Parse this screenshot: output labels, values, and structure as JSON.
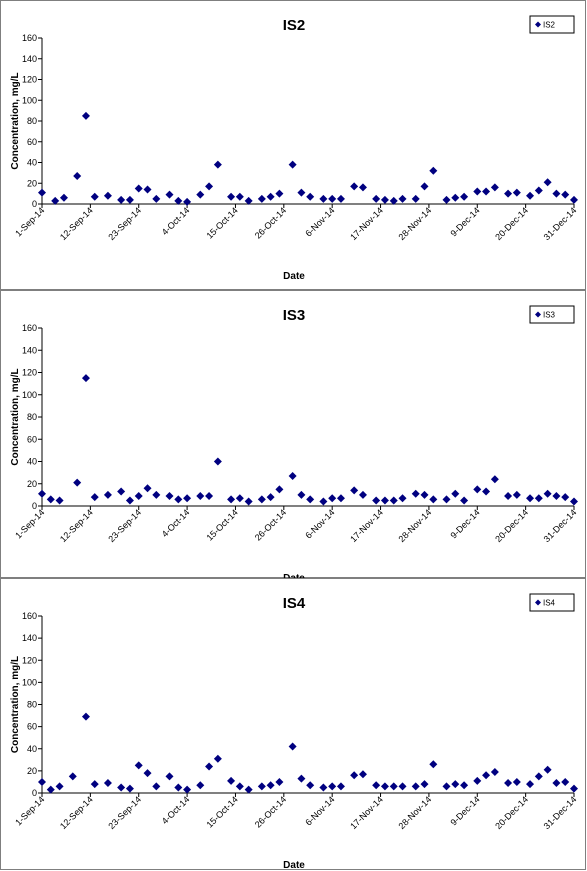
{
  "colors": {
    "marker": "#000080",
    "axis": "#000000",
    "frame": "#7f7f7f"
  },
  "chart_data": [
    {
      "type": "scatter",
      "title": "IS2",
      "xlabel": "Date",
      "ylabel": "Concentration, mg/L",
      "legend": "IS2",
      "legend_position": "top-right",
      "grid": false,
      "ylim": [
        0,
        160
      ],
      "y_ticks": [
        0,
        20,
        40,
        60,
        80,
        100,
        120,
        140,
        160
      ],
      "xlim": [
        "2014-09-01",
        "2014-12-31"
      ],
      "x_ticks": [
        "1-Sep-14",
        "12-Sep-14",
        "23-Sep-14",
        "4-Oct-14",
        "15-Oct-14",
        "26-Oct-14",
        "6-Nov-14",
        "17-Nov-14",
        "28-Nov-14",
        "9-Dec-14",
        "20-Dec-14",
        "31-Dec-14"
      ],
      "points": [
        [
          "2014-09-01",
          11
        ],
        [
          "2014-09-04",
          3
        ],
        [
          "2014-09-06",
          6
        ],
        [
          "2014-09-09",
          27
        ],
        [
          "2014-09-11",
          85
        ],
        [
          "2014-09-13",
          7
        ],
        [
          "2014-09-16",
          8
        ],
        [
          "2014-09-19",
          4
        ],
        [
          "2014-09-21",
          4
        ],
        [
          "2014-09-23",
          15
        ],
        [
          "2014-09-25",
          14
        ],
        [
          "2014-09-27",
          5
        ],
        [
          "2014-09-30",
          9
        ],
        [
          "2014-10-02",
          3
        ],
        [
          "2014-10-04",
          2
        ],
        [
          "2014-10-07",
          9
        ],
        [
          "2014-10-09",
          17
        ],
        [
          "2014-10-11",
          38
        ],
        [
          "2014-10-14",
          7
        ],
        [
          "2014-10-16",
          7
        ],
        [
          "2014-10-18",
          3
        ],
        [
          "2014-10-21",
          5
        ],
        [
          "2014-10-23",
          7
        ],
        [
          "2014-10-25",
          10
        ],
        [
          "2014-10-28",
          38
        ],
        [
          "2014-10-30",
          11
        ],
        [
          "2014-11-01",
          7
        ],
        [
          "2014-11-04",
          5
        ],
        [
          "2014-11-06",
          5
        ],
        [
          "2014-11-08",
          5
        ],
        [
          "2014-11-11",
          17
        ],
        [
          "2014-11-13",
          16
        ],
        [
          "2014-11-16",
          5
        ],
        [
          "2014-11-18",
          4
        ],
        [
          "2014-11-20",
          3
        ],
        [
          "2014-11-22",
          5
        ],
        [
          "2014-11-25",
          5
        ],
        [
          "2014-11-27",
          17
        ],
        [
          "2014-11-29",
          32
        ],
        [
          "2014-12-02",
          4
        ],
        [
          "2014-12-04",
          6
        ],
        [
          "2014-12-06",
          7
        ],
        [
          "2014-12-09",
          12
        ],
        [
          "2014-12-11",
          12
        ],
        [
          "2014-12-13",
          16
        ],
        [
          "2014-12-16",
          10
        ],
        [
          "2014-12-18",
          11
        ],
        [
          "2014-12-21",
          8
        ],
        [
          "2014-12-23",
          13
        ],
        [
          "2014-12-25",
          21
        ],
        [
          "2014-12-27",
          10
        ],
        [
          "2014-12-29",
          9
        ],
        [
          "2014-12-31",
          4
        ]
      ]
    },
    {
      "type": "scatter",
      "title": "IS3",
      "xlabel": "Date",
      "ylabel": "Concentration, mg/L",
      "legend": "IS3",
      "legend_position": "top-right",
      "grid": false,
      "ylim": [
        0,
        160
      ],
      "y_ticks": [
        0,
        20,
        40,
        60,
        80,
        100,
        120,
        140,
        160
      ],
      "xlim": [
        "2014-09-01",
        "2014-12-31"
      ],
      "x_ticks": [
        "1-Sep-14",
        "12-Sep-14",
        "23-Sep-14",
        "4-Oct-14",
        "15-Oct-14",
        "26-Oct-14",
        "6-Nov-14",
        "17-Nov-14",
        "28-Nov-14",
        "9-Dec-14",
        "20-Dec-14",
        "31-Dec-14"
      ],
      "points": [
        [
          "2014-09-01",
          11
        ],
        [
          "2014-09-03",
          6
        ],
        [
          "2014-09-05",
          5
        ],
        [
          "2014-09-09",
          21
        ],
        [
          "2014-09-11",
          115
        ],
        [
          "2014-09-13",
          8
        ],
        [
          "2014-09-16",
          10
        ],
        [
          "2014-09-19",
          13
        ],
        [
          "2014-09-21",
          5
        ],
        [
          "2014-09-23",
          9
        ],
        [
          "2014-09-25",
          16
        ],
        [
          "2014-09-27",
          10
        ],
        [
          "2014-09-30",
          9
        ],
        [
          "2014-10-02",
          6
        ],
        [
          "2014-10-04",
          7
        ],
        [
          "2014-10-07",
          9
        ],
        [
          "2014-10-09",
          9
        ],
        [
          "2014-10-11",
          40
        ],
        [
          "2014-10-14",
          6
        ],
        [
          "2014-10-16",
          7
        ],
        [
          "2014-10-18",
          4
        ],
        [
          "2014-10-21",
          6
        ],
        [
          "2014-10-23",
          8
        ],
        [
          "2014-10-25",
          15
        ],
        [
          "2014-10-28",
          27
        ],
        [
          "2014-10-30",
          10
        ],
        [
          "2014-11-01",
          6
        ],
        [
          "2014-11-04",
          4
        ],
        [
          "2014-11-06",
          7
        ],
        [
          "2014-11-08",
          7
        ],
        [
          "2014-11-11",
          14
        ],
        [
          "2014-11-13",
          10
        ],
        [
          "2014-11-16",
          5
        ],
        [
          "2014-11-18",
          5
        ],
        [
          "2014-11-20",
          5
        ],
        [
          "2014-11-22",
          7
        ],
        [
          "2014-11-25",
          11
        ],
        [
          "2014-11-27",
          10
        ],
        [
          "2014-11-29",
          6
        ],
        [
          "2014-12-02",
          6
        ],
        [
          "2014-12-04",
          11
        ],
        [
          "2014-12-06",
          5
        ],
        [
          "2014-12-09",
          15
        ],
        [
          "2014-12-11",
          13
        ],
        [
          "2014-12-13",
          24
        ],
        [
          "2014-12-16",
          9
        ],
        [
          "2014-12-18",
          10
        ],
        [
          "2014-12-21",
          7
        ],
        [
          "2014-12-23",
          7
        ],
        [
          "2014-12-25",
          11
        ],
        [
          "2014-12-27",
          9
        ],
        [
          "2014-12-29",
          8
        ],
        [
          "2014-12-31",
          4
        ]
      ]
    },
    {
      "type": "scatter",
      "title": "IS4",
      "xlabel": "Date",
      "ylabel": "Concentration, mg/L",
      "legend": "IS4",
      "legend_position": "top-right",
      "grid": false,
      "ylim": [
        0,
        160
      ],
      "y_ticks": [
        0,
        20,
        40,
        60,
        80,
        100,
        120,
        140,
        160
      ],
      "xlim": [
        "2014-09-01",
        "2014-12-31"
      ],
      "x_ticks": [
        "1-Sep-14",
        "12-Sep-14",
        "23-Sep-14",
        "4-Oct-14",
        "15-Oct-14",
        "26-Oct-14",
        "6-Nov-14",
        "17-Nov-14",
        "28-Nov-14",
        "9-Dec-14",
        "20-Dec-14",
        "31-Dec-14"
      ],
      "points": [
        [
          "2014-09-01",
          10
        ],
        [
          "2014-09-03",
          3
        ],
        [
          "2014-09-05",
          6
        ],
        [
          "2014-09-08",
          15
        ],
        [
          "2014-09-11",
          69
        ],
        [
          "2014-09-13",
          8
        ],
        [
          "2014-09-16",
          9
        ],
        [
          "2014-09-19",
          5
        ],
        [
          "2014-09-21",
          4
        ],
        [
          "2014-09-23",
          25
        ],
        [
          "2014-09-25",
          18
        ],
        [
          "2014-09-27",
          6
        ],
        [
          "2014-09-30",
          15
        ],
        [
          "2014-10-02",
          5
        ],
        [
          "2014-10-04",
          3
        ],
        [
          "2014-10-07",
          7
        ],
        [
          "2014-10-09",
          24
        ],
        [
          "2014-10-11",
          31
        ],
        [
          "2014-10-14",
          11
        ],
        [
          "2014-10-16",
          6
        ],
        [
          "2014-10-18",
          3
        ],
        [
          "2014-10-21",
          6
        ],
        [
          "2014-10-23",
          7
        ],
        [
          "2014-10-25",
          10
        ],
        [
          "2014-10-28",
          42
        ],
        [
          "2014-10-30",
          13
        ],
        [
          "2014-11-01",
          7
        ],
        [
          "2014-11-04",
          5
        ],
        [
          "2014-11-06",
          6
        ],
        [
          "2014-11-08",
          6
        ],
        [
          "2014-11-11",
          16
        ],
        [
          "2014-11-13",
          17
        ],
        [
          "2014-11-16",
          7
        ],
        [
          "2014-11-18",
          6
        ],
        [
          "2014-11-20",
          6
        ],
        [
          "2014-11-22",
          6
        ],
        [
          "2014-11-25",
          6
        ],
        [
          "2014-11-27",
          8
        ],
        [
          "2014-11-29",
          26
        ],
        [
          "2014-12-02",
          6
        ],
        [
          "2014-12-04",
          8
        ],
        [
          "2014-12-06",
          7
        ],
        [
          "2014-12-09",
          11
        ],
        [
          "2014-12-11",
          16
        ],
        [
          "2014-12-13",
          19
        ],
        [
          "2014-12-16",
          9
        ],
        [
          "2014-12-18",
          10
        ],
        [
          "2014-12-21",
          8
        ],
        [
          "2014-12-23",
          15
        ],
        [
          "2014-12-25",
          21
        ],
        [
          "2014-12-27",
          9
        ],
        [
          "2014-12-29",
          10
        ],
        [
          "2014-12-31",
          4
        ]
      ]
    }
  ]
}
